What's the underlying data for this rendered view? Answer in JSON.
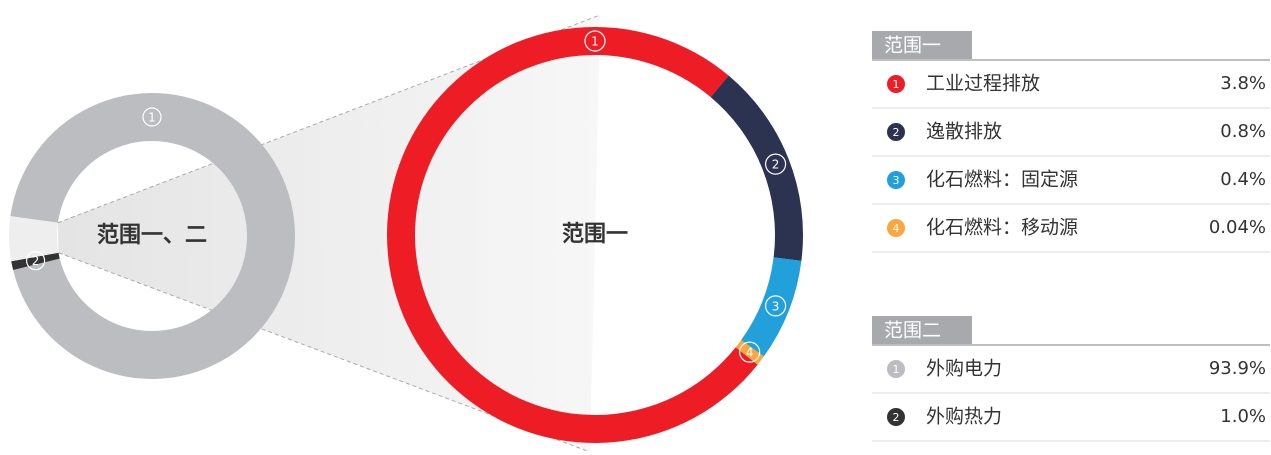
{
  "chart_data": [
    {
      "type": "donut",
      "title": "范围一",
      "center_label": "范围一",
      "categories": [
        "工业过程排放",
        "逸散排放",
        "化石燃料：固定源",
        "化石燃料：移动源"
      ],
      "markers": [
        "1",
        "2",
        "3",
        "4"
      ],
      "values": [
        3.8,
        0.8,
        0.4,
        0.04
      ],
      "value_labels": [
        "3.8%",
        "0.8%",
        "0.4%",
        "0.04%"
      ],
      "colors": [
        "#ee1c25",
        "#2c3350",
        "#21a0db",
        "#f9a73e"
      ]
    },
    {
      "type": "donut",
      "title": "范围二",
      "center_label": "范围一、二",
      "categories": [
        "外购电力",
        "外购热力"
      ],
      "markers": [
        "1",
        "2"
      ],
      "values": [
        93.9,
        1.0
      ],
      "value_labels": [
        "93.9%",
        "1.0%"
      ],
      "colors": [
        "#bcbdc0",
        "#333333"
      ]
    }
  ]
}
